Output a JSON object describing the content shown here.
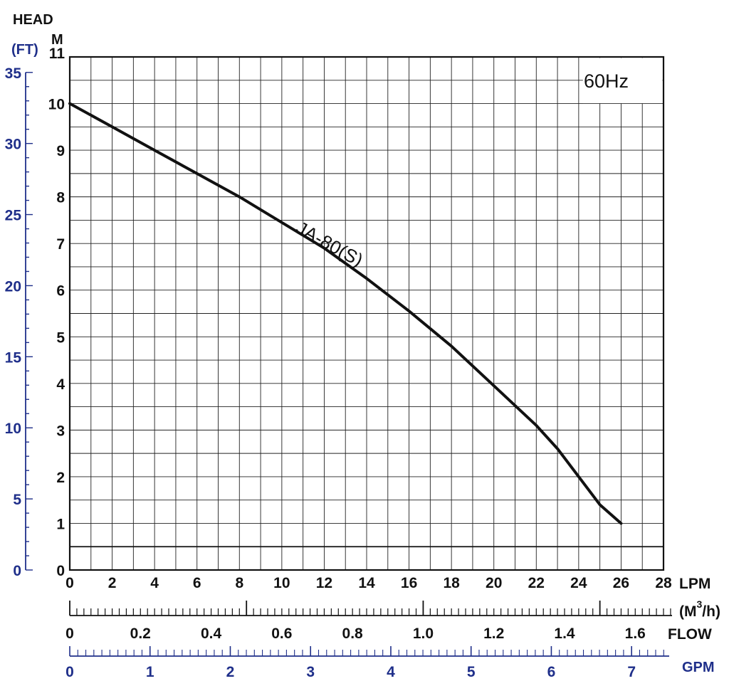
{
  "labels": {
    "head": "HEAD",
    "ft": "(FT)",
    "m": "M",
    "hz": "60Hz",
    "lpm": "LPM",
    "m3h_open": "(M",
    "m3h_sup": "3",
    "m3h_close": "/h)",
    "flow": "FLOW",
    "gpm": "GPM"
  },
  "colors": {
    "black": "#111111",
    "blue": "#1f2f8a",
    "grid": "#222222"
  },
  "chart_data": {
    "type": "line",
    "title": "60Hz",
    "xlabel": "LPM",
    "ylabel": "M",
    "xlim": [
      0,
      28
    ],
    "ylim": [
      0,
      11
    ],
    "grid": true,
    "x_ticks": [
      "0",
      "2",
      "4",
      "6",
      "8",
      "10",
      "12",
      "14",
      "16",
      "18",
      "20",
      "22",
      "24",
      "26",
      "28"
    ],
    "y_ticks": [
      "0",
      "1",
      "2",
      "3",
      "4",
      "5",
      "6",
      "7",
      "8",
      "9",
      "10",
      "11"
    ],
    "ft_ticks": [
      "0",
      "5",
      "10",
      "15",
      "20",
      "25",
      "30",
      "35"
    ],
    "ft_max": 35,
    "m3h_ticks": [
      "0",
      "0.2",
      "0.4",
      "0.6",
      "0.8",
      "1.0",
      "1.2",
      "1.4",
      "1.6"
    ],
    "gpm_ticks": [
      "0",
      "1",
      "2",
      "3",
      "4",
      "5",
      "6",
      "7"
    ],
    "reference_line": {
      "y": 0.5
    },
    "series": [
      {
        "name": "JA-80(S)",
        "x": [
          0,
          2,
          4,
          6,
          8,
          10,
          12,
          14,
          16,
          18,
          20,
          22,
          23,
          24,
          25,
          26
        ],
        "y": [
          10.0,
          9.5,
          9.0,
          8.5,
          8.0,
          7.45,
          6.9,
          6.25,
          5.55,
          4.8,
          3.95,
          3.1,
          2.6,
          2.0,
          1.4,
          1.0
        ]
      }
    ]
  }
}
